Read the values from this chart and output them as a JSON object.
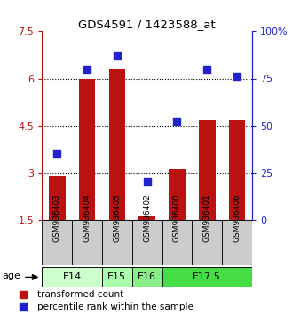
{
  "title": "GDS4591 / 1423588_at",
  "samples": [
    "GSM936403",
    "GSM936404",
    "GSM936405",
    "GSM936402",
    "GSM936400",
    "GSM936401",
    "GSM936406"
  ],
  "bar_values": [
    2.9,
    6.0,
    6.3,
    1.6,
    3.1,
    4.7,
    4.7
  ],
  "dot_values": [
    35,
    80,
    87,
    20,
    52,
    80,
    76
  ],
  "bar_color": "#bb1111",
  "dot_color": "#2222cc",
  "ylim_left": [
    1.5,
    7.5
  ],
  "ylim_right": [
    0,
    100
  ],
  "yticks_left": [
    1.5,
    3.0,
    4.5,
    6.0,
    7.5
  ],
  "ytick_labels_left": [
    "1.5",
    "3",
    "4.5",
    "6",
    "7.5"
  ],
  "yticks_right": [
    0,
    25,
    50,
    75,
    100
  ],
  "ytick_labels_right": [
    "0",
    "25",
    "50",
    "75",
    "100%"
  ],
  "age_groups": [
    {
      "label": "E14",
      "start": 0,
      "end": 1,
      "color": "#ccffcc"
    },
    {
      "label": "E15",
      "start": 2,
      "end": 2,
      "color": "#aaffaa"
    },
    {
      "label": "E16",
      "start": 3,
      "end": 3,
      "color": "#88ee88"
    },
    {
      "label": "E17.5",
      "start": 4,
      "end": 6,
      "color": "#44dd44"
    }
  ],
  "legend_bar_label": "transformed count",
  "legend_dot_label": "percentile rank within the sample",
  "age_label": "age",
  "grid_yticks": [
    3.0,
    4.5,
    6.0
  ],
  "bar_width": 0.55,
  "gray_color": "#cccccc",
  "fig_bg": "#ffffff"
}
